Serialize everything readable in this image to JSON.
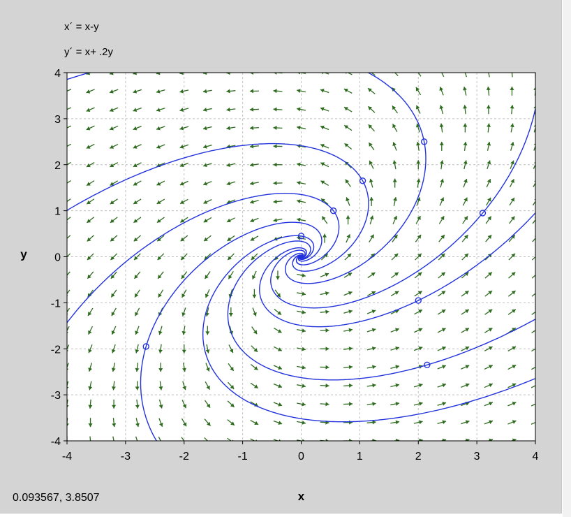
{
  "equations": {
    "x_prime": "x´ = x-y",
    "y_prime": "y´ = x+ .2y"
  },
  "cursor_readout": "0.093567,  3.8507",
  "colors": {
    "background": "#d4d4d4",
    "plot_area": "#ffffff",
    "grid": "#c0c0c0",
    "field_arrows": "#2e6b1f",
    "trajectories": "#2233dd",
    "initial_points": "#2233dd"
  },
  "chart_data": {
    "type": "direction-field",
    "system": {
      "dx": "x - y",
      "dy": "x + 0.2y"
    },
    "xlabel": "x",
    "ylabel": "y",
    "xlim": [
      -4,
      4
    ],
    "ylim": [
      -4,
      4
    ],
    "xticks": [
      -4,
      -3,
      -2,
      -1,
      0,
      1,
      2,
      3,
      4
    ],
    "yticks": [
      -4,
      -3,
      -2,
      -1,
      0,
      1,
      2,
      3,
      4
    ],
    "grid": true,
    "field_samples_per_axis": 20,
    "initial_points": [
      {
        "x": 0.0,
        "y": 0.45
      },
      {
        "x": 0.55,
        "y": 1.0
      },
      {
        "x": 1.05,
        "y": 1.65
      },
      {
        "x": 2.1,
        "y": 2.5
      },
      {
        "x": 3.1,
        "y": 0.95
      },
      {
        "x": 2.0,
        "y": -0.95
      },
      {
        "x": 2.15,
        "y": -2.35
      },
      {
        "x": -2.65,
        "y": -1.95
      }
    ]
  }
}
